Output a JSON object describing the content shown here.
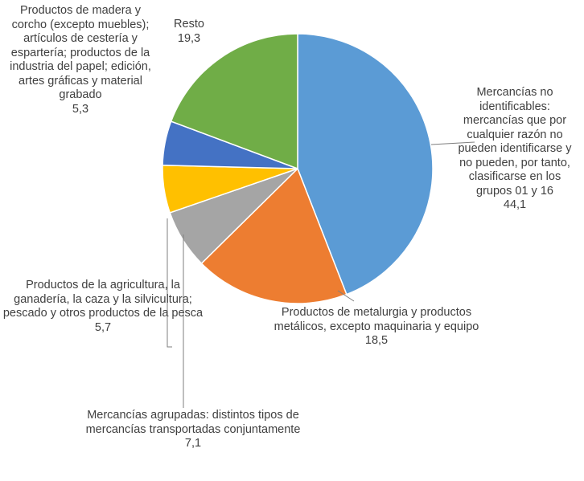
{
  "chart_data": {
    "type": "pie",
    "categories": [
      "Mercancías no identificables: mercancías que por cualquier razón no pueden identificarse y no pueden, por tanto, clasificarse en los grupos 01 y 16",
      "Productos de metalurgia y productos metálicos, excepto maquinaria y equipo",
      "Mercancías agrupadas: distintos tipos de mercancías transportadas conjuntamente",
      "Productos de la agricultura, la ganadería, la caza y la silvicultura; pescado y otros productos de la pesca",
      "Productos de madera y corcho (excepto muebles); artículos de cestería y espartería; productos de la industria del papel; edición, artes gráficas y material grabado",
      "Resto"
    ],
    "values": [
      44.1,
      18.5,
      7.1,
      5.7,
      5.3,
      19.3
    ],
    "value_labels": [
      "44,1",
      "18,5",
      "7,1",
      "5,7",
      "5,3",
      "19,3"
    ],
    "colors": [
      "#5b9bd5",
      "#ed7d31",
      "#a5a5a5",
      "#ffc000",
      "#4472c4",
      "#70ad47"
    ]
  }
}
